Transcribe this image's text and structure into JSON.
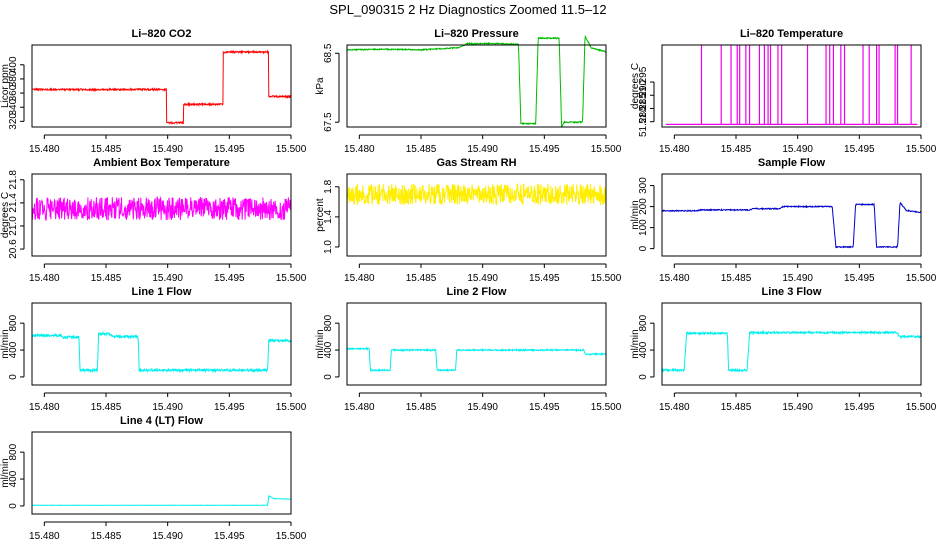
{
  "page_title": "SPL_090315  2 Hz Diagnostics Zoomed 11.5–12",
  "x_ticks": [
    15.48,
    15.485,
    15.49,
    15.495,
    15.5
  ],
  "x_tick_labels": [
    "15.480",
    "15.485",
    "15.490",
    "15.495",
    "15.500"
  ],
  "chart_data": [
    {
      "type": "line",
      "title": "Li–820 CO2",
      "ylabel": "Licor ppm",
      "color": "#ff0000",
      "xlim": [
        15.479,
        15.5
      ],
      "ylim": [
        312,
        428
      ],
      "y_ticks": [
        320,
        340,
        360,
        380,
        400
      ],
      "y_tick_labels": [
        "320",
        "340",
        "360",
        "380",
        "400"
      ],
      "noise": 1.2,
      "x": [
        15.479,
        15.4899,
        15.4899,
        15.4913,
        15.4913,
        15.4945,
        15.4945,
        15.4982,
        15.4982,
        15.5
      ],
      "y": [
        365,
        365,
        318,
        318,
        344,
        344,
        418,
        418,
        355,
        355
      ]
    },
    {
      "type": "line",
      "title": "Li–820 Pressure",
      "ylabel": "kPa",
      "color": "#00bb00",
      "xlim": [
        15.479,
        15.5
      ],
      "ylim": [
        67.43,
        68.62
      ],
      "y_ticks": [
        67.5,
        68.5
      ],
      "y_tick_labels": [
        "67.5",
        "68.5"
      ],
      "noise": 0.008,
      "x": [
        15.479,
        15.482,
        15.485,
        15.488,
        15.4888,
        15.4912,
        15.4929,
        15.4931,
        15.4943,
        15.4945,
        15.4962,
        15.4964,
        15.4966,
        15.4981,
        15.4983,
        15.4988,
        15.5
      ],
      "y": [
        68.55,
        68.56,
        68.55,
        68.58,
        68.64,
        68.64,
        68.63,
        67.48,
        67.48,
        68.72,
        68.72,
        67.43,
        67.5,
        67.5,
        68.75,
        68.58,
        68.52
      ]
    },
    {
      "type": "line",
      "title": "Li–820 Temperature",
      "ylabel": "degrees C",
      "color": "#ee00ee",
      "xlim": [
        15.479,
        15.5
      ],
      "ylim": [
        51.278,
        51.309
      ],
      "y_ticks": [
        51.28,
        51.285,
        51.29,
        51.295
      ],
      "y_tick_labels": [
        "51.280",
        "51.285",
        "51.290",
        "51.295"
      ],
      "baseline": 51.279,
      "peak": 51.309,
      "spikes": [
        15.4822,
        15.4838,
        15.4846,
        15.4851,
        15.4853,
        15.4858,
        15.4861,
        15.4869,
        15.4873,
        15.4876,
        15.4878,
        15.4884,
        15.4887,
        15.4908,
        15.4923,
        15.4926,
        15.4929,
        15.4935,
        15.4938,
        15.4953,
        15.4958,
        15.4964,
        15.4966,
        15.4979,
        15.4981,
        15.4992
      ]
    },
    {
      "type": "line",
      "title": "Ambient Box Temperature",
      "ylabel": "degrees C",
      "color": "#ff00ff",
      "xlim": [
        15.479,
        15.5
      ],
      "ylim": [
        20.48,
        21.9
      ],
      "y_ticks": [
        20.6,
        21.0,
        21.4,
        21.8
      ],
      "y_tick_labels": [
        "20.6",
        "21.0",
        "21.4",
        "21.8"
      ],
      "noise": 0.2,
      "x": [
        15.479,
        15.5
      ],
      "y": [
        21.3,
        21.3
      ]
    },
    {
      "type": "line",
      "title": "Gas Stream RH",
      "ylabel": "percent",
      "color": "#ffee00",
      "xlim": [
        15.479,
        15.5
      ],
      "ylim": [
        0.88,
        1.97
      ],
      "y_ticks": [
        1.0,
        1.4,
        1.8
      ],
      "y_tick_labels": [
        "1.0",
        "1.4",
        "1.8"
      ],
      "noise": 0.14,
      "x": [
        15.479,
        15.5
      ],
      "y": [
        1.7,
        1.7
      ]
    },
    {
      "type": "line",
      "title": "Sample Flow",
      "ylabel": "ml/min",
      "color": "#0000cc",
      "xlim": [
        15.479,
        15.5
      ],
      "ylim": [
        -35,
        355
      ],
      "y_ticks": [
        0,
        100,
        200,
        300
      ],
      "y_tick_labels": [
        "0",
        "100",
        "200",
        "300"
      ],
      "noise": 2.5,
      "x": [
        15.479,
        15.4818,
        15.4821,
        15.4861,
        15.4864,
        15.4885,
        15.4888,
        15.4928,
        15.4931,
        15.4945,
        15.4947,
        15.4962,
        15.4964,
        15.4981,
        15.4983,
        15.4988,
        15.5
      ],
      "y": [
        180,
        180,
        184,
        184,
        190,
        190,
        200,
        200,
        8,
        8,
        210,
        210,
        8,
        8,
        220,
        182,
        172
      ]
    },
    {
      "type": "line",
      "title": "Line 1 Flow",
      "ylabel": "ml/min",
      "color": "#00eeee",
      "xlim": [
        15.479,
        15.5
      ],
      "ylim": [
        -120,
        1100
      ],
      "y_ticks": [
        0,
        400,
        800
      ],
      "y_tick_labels": [
        "0",
        "400",
        "800"
      ],
      "noise": 18,
      "x": [
        15.479,
        15.4813,
        15.4815,
        15.4828,
        15.4829,
        15.4843,
        15.4844,
        15.4852,
        15.4856,
        15.4876,
        15.4877,
        15.4981,
        15.4982,
        15.5
      ],
      "y": [
        620,
        620,
        590,
        590,
        100,
        100,
        640,
        640,
        600,
        600,
        100,
        100,
        540,
        540
      ]
    },
    {
      "type": "line",
      "title": "Line 2 Flow",
      "ylabel": "ml/min",
      "color": "#00eeee",
      "xlim": [
        15.479,
        15.5
      ],
      "ylim": [
        -120,
        1100
      ],
      "y_ticks": [
        0,
        400,
        800
      ],
      "y_tick_labels": [
        "0",
        "400",
        "800"
      ],
      "noise": 10,
      "x": [
        15.479,
        15.4808,
        15.4809,
        15.4825,
        15.4826,
        15.4862,
        15.4863,
        15.4878,
        15.4879,
        15.4982,
        15.4983,
        15.5
      ],
      "y": [
        420,
        420,
        100,
        100,
        400,
        400,
        100,
        100,
        400,
        400,
        340,
        340
      ]
    },
    {
      "type": "line",
      "title": "Line 3 Flow",
      "ylabel": "ml/min",
      "color": "#00eeee",
      "xlim": [
        15.479,
        15.5
      ],
      "ylim": [
        -120,
        1100
      ],
      "y_ticks": [
        0,
        400,
        800
      ],
      "y_tick_labels": [
        "0",
        "400",
        "800"
      ],
      "noise": 14,
      "x": [
        15.479,
        15.4808,
        15.481,
        15.4843,
        15.4844,
        15.4859,
        15.4861,
        15.4981,
        15.4982,
        15.5
      ],
      "y": [
        100,
        100,
        650,
        650,
        100,
        100,
        660,
        660,
        600,
        600
      ]
    },
    {
      "type": "line",
      "title": "Line 4 (LT) Flow",
      "ylabel": "ml/min",
      "color": "#00eeee",
      "xlim": [
        15.479,
        15.5
      ],
      "ylim": [
        -120,
        1100
      ],
      "y_ticks": [
        0,
        400,
        800
      ],
      "y_tick_labels": [
        "0",
        "400",
        "800"
      ],
      "noise": 2,
      "x": [
        15.479,
        15.4981,
        15.4982,
        15.4986,
        15.5
      ],
      "y": [
        10,
        10,
        150,
        110,
        100
      ]
    }
  ]
}
